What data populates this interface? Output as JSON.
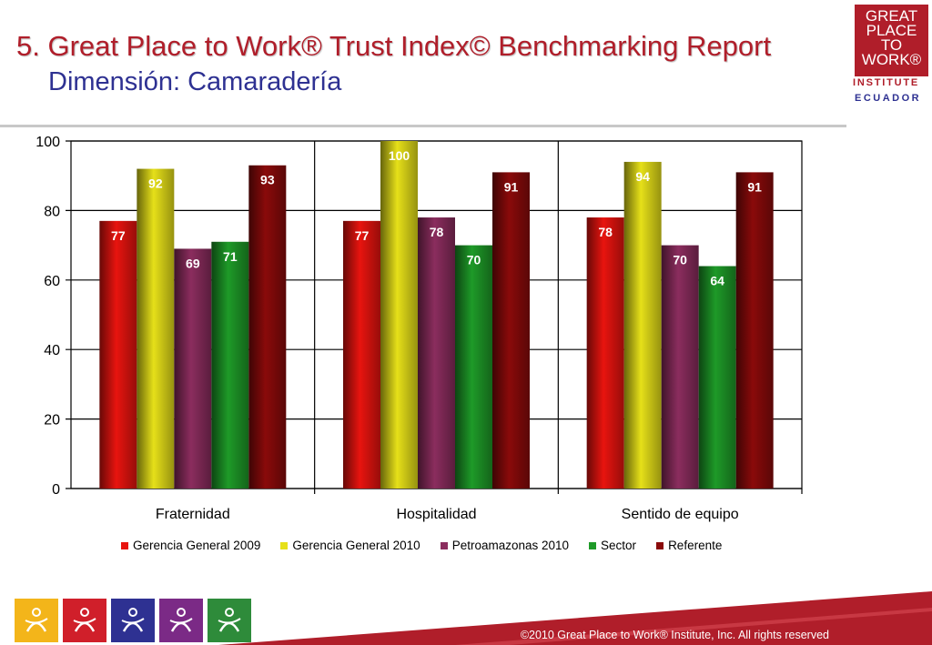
{
  "header": {
    "title": "5. Great Place to Work® Trust Index© Benchmarking Report",
    "subtitle": "Dimensión: Camaradería"
  },
  "logo": {
    "lines": [
      "GREAT",
      "PLACE",
      "TO",
      "WORK®"
    ],
    "institute": "INSTITUTE",
    "country": "ECUADOR"
  },
  "footer": {
    "copyright": "©2010 Great Place to Work® Institute, Inc. All rights reserved",
    "icons": [
      {
        "name": "credibility-icon",
        "color": "#f3b51a"
      },
      {
        "name": "respect-icon",
        "color": "#d01f2a"
      },
      {
        "name": "fairness-icon",
        "color": "#2e3192"
      },
      {
        "name": "pride-icon",
        "color": "#7b2a86"
      },
      {
        "name": "camaraderie-icon",
        "color": "#2e8b3a"
      }
    ]
  },
  "chart_data": {
    "type": "bar",
    "categories": [
      "Fraternidad",
      "Hospitalidad",
      "Sentido de equipo"
    ],
    "series": [
      {
        "name": "Gerencia General 2009",
        "values": [
          77,
          77,
          78
        ],
        "color": "#e8140f",
        "label_color": "#ffffff"
      },
      {
        "name": "Gerencia General 2010",
        "values": [
          92,
          100,
          94
        ],
        "color": "#e6e019",
        "label_color": "#ffffff"
      },
      {
        "name": "Petroamazonas 2010",
        "values": [
          69,
          78,
          70
        ],
        "color": "#8b2d5e",
        "label_color": "#ffffff"
      },
      {
        "name": "Sector",
        "values": [
          71,
          70,
          64
        ],
        "color": "#1e9a28",
        "label_color": "#ffffff"
      },
      {
        "name": "Referente",
        "values": [
          93,
          91,
          91
        ],
        "color": "#8a0a0a",
        "label_color": "#ffffff"
      }
    ],
    "yticks": [
      0,
      20,
      40,
      60,
      80,
      100
    ],
    "ylim": [
      0,
      100
    ],
    "legend_position": "bottom"
  }
}
